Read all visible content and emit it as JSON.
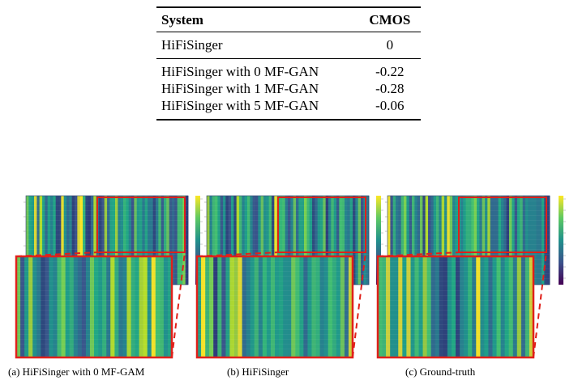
{
  "table": {
    "headers": [
      "System",
      "CMOS"
    ],
    "groups": [
      [
        [
          "HiFiSinger",
          "0"
        ]
      ],
      [
        [
          "HiFiSinger with 0 MF-GAN",
          "-0.22"
        ],
        [
          "HiFiSinger with 1 MF-GAN",
          "-0.28"
        ],
        [
          "HiFiSinger with 5 MF-GAN",
          "-0.06"
        ]
      ]
    ]
  },
  "figure": {
    "panels": [
      {
        "caption": "(a) HiFiSinger with 0 MF-GAM",
        "seed": 3
      },
      {
        "caption": "(b) HiFiSinger",
        "seed": 11
      },
      {
        "caption": "(c) Ground-truth",
        "seed": 23
      }
    ],
    "colormap": "viridis",
    "highlight_color": "#e0201a"
  }
}
